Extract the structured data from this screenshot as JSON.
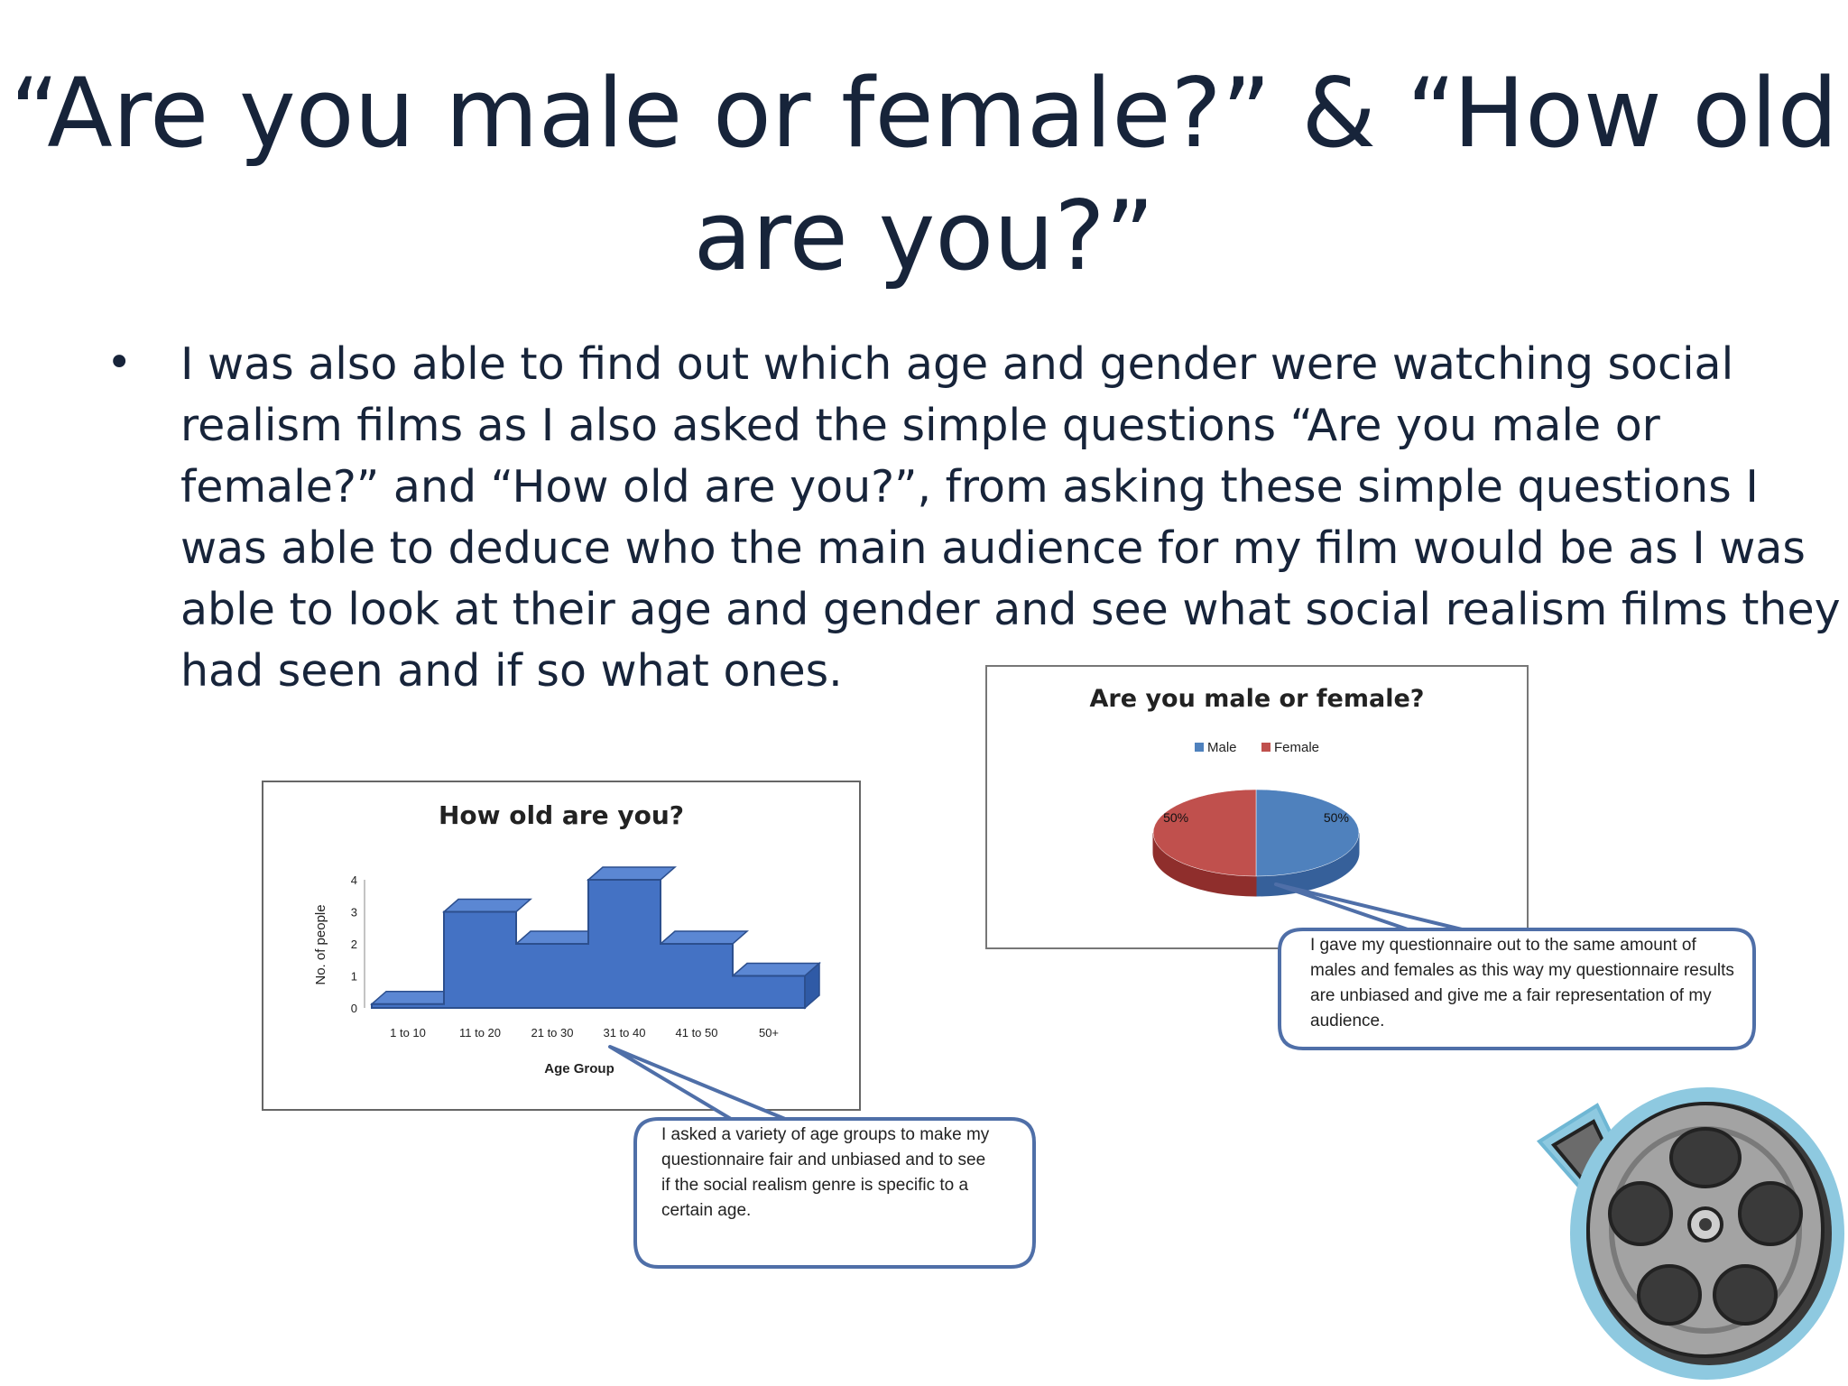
{
  "slide": {
    "title_line1": "“Are you male or female?” & “How old",
    "title_line2": "are you?”",
    "bullet_symbol": "•",
    "bullet_text": "I was also able to find out which age and gender were watching social realism films as I also asked the simple questions “Are you male or female?” and “How old are you?”, from asking these simple questions I was able to deduce who the main audience for my film would be as I was able to look at their age and gender and see what social realism films they had seen and if so what ones."
  },
  "colors": {
    "title_text": "#17243a",
    "bar_fill": "#4472c4",
    "male": "#4f81bd",
    "female": "#c0504d",
    "callout_border": "#4f6fa8"
  },
  "chart_data": [
    {
      "type": "bar",
      "title": "How old are you?",
      "xlabel": "Age Group",
      "ylabel": "No. of people",
      "categories": [
        "1 to 10",
        "11 to 20",
        "21 to 30",
        "31 to 40",
        "41 to 50",
        "50+"
      ],
      "values": [
        0,
        3,
        2,
        4,
        2,
        1
      ],
      "ylim": [
        0,
        4
      ],
      "yticks": [
        "0",
        "1",
        "2",
        "3",
        "4"
      ],
      "style": "3d",
      "grid": false,
      "legend": "none"
    },
    {
      "type": "pie",
      "title": "Are you male or female?",
      "labels": [
        "Male",
        "Female"
      ],
      "values": [
        50,
        50
      ],
      "data_labels": [
        "50%",
        "50%"
      ],
      "style": "3d",
      "legend": "top"
    }
  ],
  "callouts": {
    "age": "I asked a variety of age groups to make my questionnaire fair and unbiased and to see if the social realism genre is specific to a certain age.",
    "gender": "I gave my questionnaire out to the same amount of males and females as this way my questionnaire results are unbiased and give me a fair representation of my audience."
  },
  "decor": {
    "reel_icon": "film-reel-icon"
  }
}
